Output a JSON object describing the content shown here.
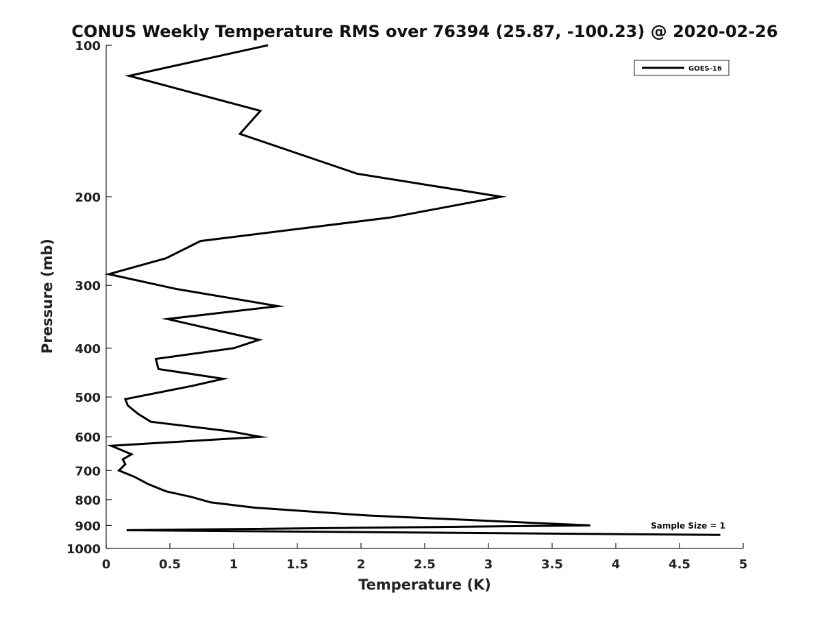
{
  "chart_data": {
    "type": "line",
    "title": "CONUS Weekly Temperature RMS over 76394 (25.87, -100.23) @ 2020-02-26",
    "xlabel": "Temperature (K)",
    "ylabel": "Pressure (mb)",
    "xlim": [
      0,
      5
    ],
    "ylim": [
      100,
      1000
    ],
    "yscale": "log",
    "y_reversed": true,
    "xticks": [
      "0",
      "0.5",
      "1",
      "1.5",
      "2",
      "2.5",
      "3",
      "3.5",
      "4",
      "4.5",
      "5"
    ],
    "yticks": [
      "100",
      "200",
      "300",
      "400",
      "500",
      "600",
      "700",
      "800",
      "900",
      "1000"
    ],
    "grid": false,
    "legend": {
      "location": "top-right",
      "entries": [
        "GOES-16"
      ]
    },
    "annotation": "Sample Size = 1",
    "series": [
      {
        "name": "GOES-16",
        "color": "#000000",
        "points": [
          [
            1.27,
            100
          ],
          [
            0.18,
            115
          ],
          [
            1.21,
            135
          ],
          [
            1.05,
            150
          ],
          [
            1.97,
            180
          ],
          [
            3.1,
            200
          ],
          [
            2.23,
            220
          ],
          [
            0.74,
            245
          ],
          [
            0.47,
            265
          ],
          [
            0.02,
            285
          ],
          [
            0.55,
            305
          ],
          [
            1.35,
            330
          ],
          [
            0.48,
            350
          ],
          [
            0.9,
            370
          ],
          [
            1.2,
            385
          ],
          [
            1.0,
            400
          ],
          [
            0.39,
            420
          ],
          [
            0.41,
            440
          ],
          [
            0.92,
            460
          ],
          [
            0.68,
            475
          ],
          [
            0.15,
            505
          ],
          [
            0.17,
            520
          ],
          [
            0.25,
            540
          ],
          [
            0.35,
            560
          ],
          [
            0.97,
            585
          ],
          [
            1.21,
            600
          ],
          [
            0.04,
            625
          ],
          [
            0.2,
            650
          ],
          [
            0.13,
            665
          ],
          [
            0.15,
            680
          ],
          [
            0.1,
            700
          ],
          [
            0.22,
            720
          ],
          [
            0.33,
            745
          ],
          [
            0.47,
            770
          ],
          [
            0.67,
            790
          ],
          [
            0.82,
            810
          ],
          [
            1.17,
            830
          ],
          [
            2.05,
            860
          ],
          [
            3.8,
            900
          ],
          [
            0.16,
            920
          ],
          [
            4.82,
            940
          ]
        ]
      }
    ]
  }
}
